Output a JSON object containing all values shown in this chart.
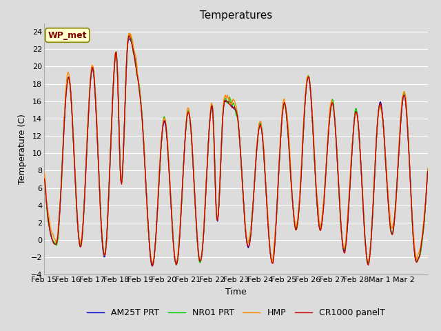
{
  "title": "Temperatures",
  "xlabel": "Time",
  "ylabel": "Temperature (C)",
  "ylim": [
    -4,
    25
  ],
  "yticks": [
    -4,
    -2,
    0,
    2,
    4,
    6,
    8,
    10,
    12,
    14,
    16,
    18,
    20,
    22,
    24
  ],
  "annotation_text": "WP_met",
  "annotation_color": "#800000",
  "annotation_bg": "#ffffcc",
  "annotation_border": "#888800",
  "series_colors": {
    "CR1000 panelT": "#cc0000",
    "HMP": "#ff8800",
    "NR01 PRT": "#00cc00",
    "AM25T PRT": "#0000cc"
  },
  "background_color": "#dcdcdc",
  "plot_bg": "#dcdcdc",
  "grid_color": "#ffffff",
  "title_fontsize": 11,
  "axis_fontsize": 9,
  "tick_fontsize": 8,
  "legend_fontsize": 9,
  "x_tick_labels": [
    "Feb 15",
    "Feb 16",
    "Feb 17",
    "Feb 18",
    "Feb 19",
    "Feb 20",
    "Feb 21",
    "Feb 22",
    "Feb 23",
    "Feb 24",
    "Feb 25",
    "Feb 26",
    "Feb 27",
    "Feb 28",
    "Mar 1",
    "Mar 2"
  ],
  "num_points": 576,
  "days": 16
}
